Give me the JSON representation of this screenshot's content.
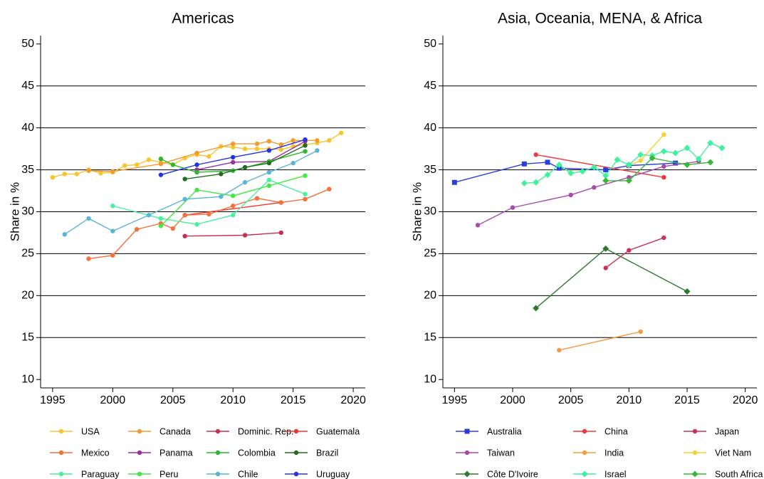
{
  "chart_data": [
    {
      "type": "line",
      "title": "Americas",
      "y_label": "Share in %",
      "xlim": [
        1994,
        2021
      ],
      "ylim": [
        9,
        51
      ],
      "xticks": [
        1995,
        2000,
        2005,
        2010,
        2015,
        2020
      ],
      "yticks": [
        10,
        15,
        20,
        25,
        30,
        35,
        40,
        45,
        50
      ],
      "grid": true,
      "series": [
        {
          "name": "USA",
          "color": "#f7c52b",
          "marker": "circle",
          "x": [
            1995,
            1996,
            1997,
            1998,
            1999,
            2000,
            2001,
            2002,
            2003,
            2004,
            2005,
            2006,
            2007,
            2008,
            2009,
            2010,
            2011,
            2012,
            2013,
            2014,
            2015,
            2016,
            2017,
            2018,
            2019
          ],
          "values": [
            34.1,
            34.5,
            34.5,
            35.0,
            34.6,
            34.7,
            35.5,
            35.6,
            36.2,
            35.9,
            35.6,
            36.4,
            36.8,
            36.6,
            37.8,
            37.7,
            37.5,
            37.5,
            37.5,
            37.4,
            37.8,
            38.0,
            38.2,
            38.5,
            39.4
          ]
        },
        {
          "name": "Canada",
          "color": "#f39a2e",
          "marker": "circle",
          "x": [
            1998,
            2000,
            2004,
            2007,
            2010,
            2012,
            2013,
            2014,
            2015,
            2017
          ],
          "values": [
            34.9,
            34.8,
            35.7,
            37.0,
            38.1,
            38.1,
            38.4,
            38.0,
            38.5,
            38.5
          ]
        },
        {
          "name": "Dominic. Rep.",
          "color": "#c4304e",
          "marker": "circle",
          "x": [
            2006,
            2011,
            2014
          ],
          "values": [
            27.1,
            27.2,
            27.5
          ]
        },
        {
          "name": "Guatemala",
          "color": "#f4342a",
          "marker": "circle",
          "x": [
            2006,
            2014
          ],
          "values": [
            29.6,
            31.1
          ]
        },
        {
          "name": "Mexico",
          "color": "#f5703a",
          "marker": "circle",
          "x": [
            1998,
            2000,
            2002,
            2004,
            2005,
            2006,
            2008,
            2010,
            2012,
            2014,
            2016,
            2018
          ],
          "values": [
            24.4,
            24.8,
            27.9,
            28.6,
            28.0,
            29.6,
            29.7,
            30.7,
            31.6,
            31.1,
            31.5,
            32.7
          ]
        },
        {
          "name": "Panama",
          "color": "#9b2f9e",
          "marker": "circle",
          "x": [
            2007,
            2010,
            2013,
            2016
          ],
          "values": [
            35.0,
            35.9,
            36.0,
            38.4
          ]
        },
        {
          "name": "Colombia",
          "color": "#2fb52f",
          "marker": "circle",
          "x": [
            2004,
            2005,
            2007,
            2010,
            2013,
            2016
          ],
          "values": [
            36.3,
            35.6,
            34.7,
            34.9,
            36.0,
            37.2
          ]
        },
        {
          "name": "Brazil",
          "color": "#1f6e1f",
          "marker": "circle",
          "x": [
            2006,
            2009,
            2011,
            2013,
            2016
          ],
          "values": [
            33.9,
            34.5,
            35.3,
            35.8,
            37.9
          ]
        },
        {
          "name": "Paraguay",
          "color": "#45f2a0",
          "marker": "circle",
          "x": [
            2000,
            2004,
            2007,
            2010,
            2013,
            2016
          ],
          "values": [
            30.7,
            29.2,
            28.5,
            29.6,
            33.8,
            32.1
          ]
        },
        {
          "name": "Peru",
          "color": "#44e844",
          "marker": "circle",
          "x": [
            2004,
            2007,
            2010,
            2013,
            2016
          ],
          "values": [
            28.3,
            32.6,
            31.9,
            33.1,
            34.3
          ]
        },
        {
          "name": "Chile",
          "color": "#5ab4d8",
          "marker": "circle",
          "x": [
            1996,
            1998,
            2000,
            2003,
            2006,
            2009,
            2011,
            2013,
            2015,
            2017
          ],
          "values": [
            27.3,
            29.2,
            27.7,
            29.6,
            31.5,
            31.8,
            33.5,
            34.7,
            35.8,
            37.3
          ]
        },
        {
          "name": "Uruguay",
          "color": "#2233e6",
          "marker": "circle",
          "x": [
            2004,
            2007,
            2010,
            2013,
            2016
          ],
          "values": [
            34.4,
            35.6,
            36.5,
            37.3,
            38.6
          ]
        }
      ]
    },
    {
      "type": "line",
      "title": "Asia, Oceania, MENA, & Africa",
      "y_label": "Share in %",
      "xlim": [
        1994,
        2021
      ],
      "ylim": [
        9,
        51
      ],
      "xticks": [
        1995,
        2000,
        2005,
        2010,
        2015,
        2020
      ],
      "yticks": [
        10,
        15,
        20,
        25,
        30,
        35,
        40,
        45,
        50
      ],
      "grid": true,
      "series": [
        {
          "name": "Australia",
          "color": "#2a3ee0",
          "marker": "square",
          "x": [
            1995,
            2001,
            2003,
            2004,
            2008,
            2010,
            2014
          ],
          "values": [
            33.5,
            35.7,
            35.9,
            35.2,
            35.0,
            35.5,
            35.8
          ]
        },
        {
          "name": "China",
          "color": "#f0383a",
          "marker": "circle",
          "x": [
            2002,
            2013
          ],
          "values": [
            36.8,
            34.1
          ]
        },
        {
          "name": "Japan",
          "color": "#cc3058",
          "marker": "circle",
          "x": [
            2008,
            2010,
            2013
          ],
          "values": [
            23.3,
            25.4,
            26.9
          ]
        },
        {
          "name": "Taiwan",
          "color": "#a64aae",
          "marker": "circle",
          "x": [
            1997,
            2000,
            2005,
            2007,
            2010,
            2013,
            2016
          ],
          "values": [
            28.4,
            30.5,
            32.0,
            32.9,
            34.1,
            35.4,
            36.0
          ]
        },
        {
          "name": "India",
          "color": "#f59a3e",
          "marker": "circle",
          "x": [
            2004,
            2011
          ],
          "values": [
            13.5,
            15.7
          ]
        },
        {
          "name": "Viet Nam",
          "color": "#f8d030",
          "marker": "circle",
          "x": [
            2010,
            2011,
            2013
          ],
          "values": [
            35.5,
            36.1,
            39.2
          ]
        },
        {
          "name": "Côte D'Ivoire",
          "color": "#2f7a2f",
          "marker": "diamond",
          "x": [
            2002,
            2008,
            2015
          ],
          "values": [
            18.5,
            25.6,
            20.5
          ]
        },
        {
          "name": "Israel",
          "color": "#3cf29a",
          "marker": "diamond",
          "x": [
            2001,
            2002,
            2003,
            2004,
            2005,
            2006,
            2007,
            2008,
            2009,
            2010,
            2011,
            2012,
            2013,
            2014,
            2015,
            2016,
            2017,
            2018
          ],
          "values": [
            33.4,
            33.5,
            34.4,
            35.6,
            34.6,
            34.8,
            35.3,
            34.3,
            36.2,
            35.6,
            36.8,
            36.7,
            37.2,
            37.0,
            37.6,
            36.3,
            38.2,
            37.6
          ]
        },
        {
          "name": "South Africa",
          "color": "#38b838",
          "marker": "diamond",
          "x": [
            2008,
            2010,
            2012,
            2015,
            2017
          ],
          "values": [
            33.7,
            33.7,
            36.4,
            35.6,
            35.9
          ]
        }
      ]
    }
  ]
}
